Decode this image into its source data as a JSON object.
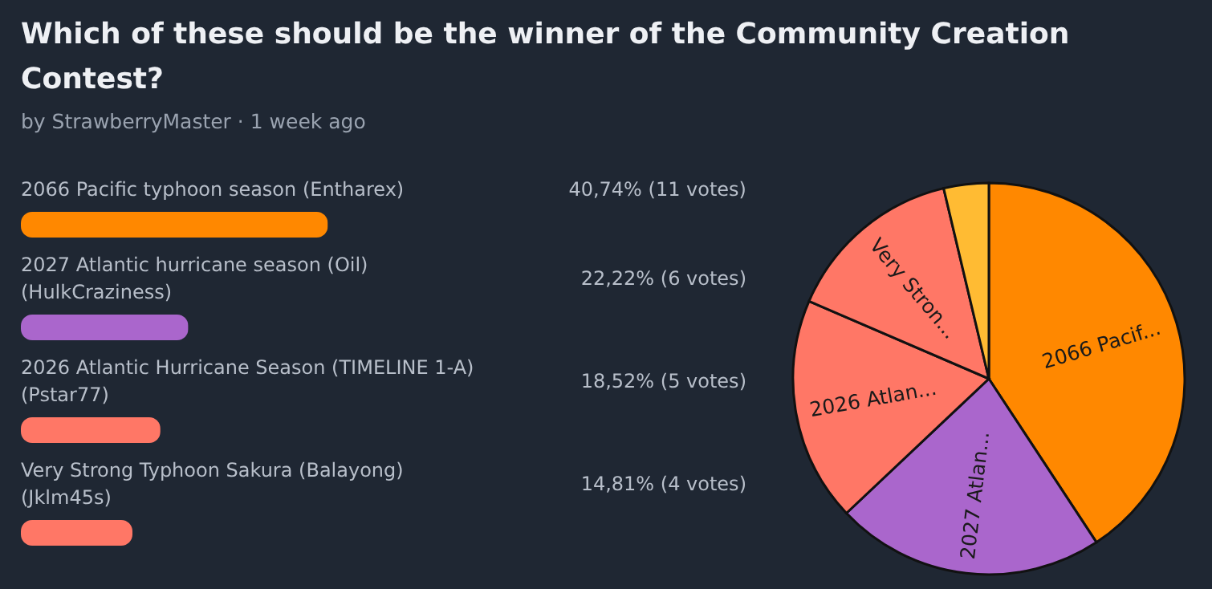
{
  "chart_data": [
    {
      "type": "bar",
      "orientation": "horizontal",
      "title": "Which of these should be the winner of the Community Creation Contest?",
      "subtitle": "by StrawberryMaster · 1 week ago",
      "categories": [
        "2066 Pacific typhoon season (Entharex)",
        "2027 Atlantic hurricane season (Oil) (HulkCraziness)",
        "2026 Atlantic Hurricane Season (TIMELINE 1-A) (Pstar77)",
        "Very Strong Typhoon Sakura (Balayong) (Jklm45s)"
      ],
      "values": [
        40.74,
        22.22,
        18.52,
        14.81
      ],
      "value_labels": [
        "40,74% (11 votes)",
        "22,22% (6 votes)",
        "18,52% (5 votes)",
        "14,81% (4 votes)"
      ],
      "colors": [
        "#ff8800",
        "#aa66cc",
        "#ff7766",
        "#ff7766"
      ]
    },
    {
      "type": "pie",
      "categories": [
        "2066 Pacif...",
        "2027 Atlan...",
        "2026 Atlan...",
        "Very Stron...",
        null
      ],
      "values": [
        40.74,
        22.22,
        18.52,
        14.81,
        3.71
      ],
      "colors": [
        "#ff8800",
        "#aa66cc",
        "#ff7766",
        "#ff7766",
        "#ffbb33"
      ]
    }
  ]
}
